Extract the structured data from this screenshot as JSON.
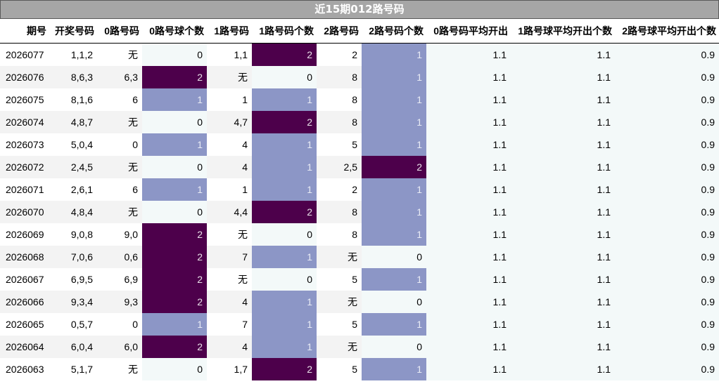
{
  "title": "近15期012路号码",
  "headers": [
    "期号",
    "开奖号码",
    "0路号码",
    "0路号球个数",
    "1路号码",
    "1路号码个数",
    "2路号码",
    "2路号码个数",
    "0路号码平均开出",
    "1路号球平均开出个数",
    "2路号球平均开出个数"
  ],
  "rows": [
    [
      "2026077",
      "1,1,2",
      "无",
      "0",
      "1,1",
      "2",
      "2",
      "1",
      "1.1",
      "1.1",
      "0.9"
    ],
    [
      "2026076",
      "8,6,3",
      "6,3",
      "2",
      "无",
      "0",
      "8",
      "1",
      "1.1",
      "1.1",
      "0.9"
    ],
    [
      "2026075",
      "8,1,6",
      "6",
      "1",
      "1",
      "1",
      "8",
      "1",
      "1.1",
      "1.1",
      "0.9"
    ],
    [
      "2026074",
      "4,8,7",
      "无",
      "0",
      "4,7",
      "2",
      "8",
      "1",
      "1.1",
      "1.1",
      "0.9"
    ],
    [
      "2026073",
      "5,0,4",
      "0",
      "1",
      "4",
      "1",
      "5",
      "1",
      "1.1",
      "1.1",
      "0.9"
    ],
    [
      "2026072",
      "2,4,5",
      "无",
      "0",
      "4",
      "1",
      "2,5",
      "2",
      "1.1",
      "1.1",
      "0.9"
    ],
    [
      "2026071",
      "2,6,1",
      "6",
      "1",
      "1",
      "1",
      "2",
      "1",
      "1.1",
      "1.1",
      "0.9"
    ],
    [
      "2026070",
      "4,8,4",
      "无",
      "0",
      "4,4",
      "2",
      "8",
      "1",
      "1.1",
      "1.1",
      "0.9"
    ],
    [
      "2026069",
      "9,0,8",
      "9,0",
      "2",
      "无",
      "0",
      "8",
      "1",
      "1.1",
      "1.1",
      "0.9"
    ],
    [
      "2026068",
      "7,0,6",
      "0,6",
      "2",
      "7",
      "1",
      "无",
      "0",
      "1.1",
      "1.1",
      "0.9"
    ],
    [
      "2026067",
      "6,9,5",
      "6,9",
      "2",
      "无",
      "0",
      "5",
      "1",
      "1.1",
      "1.1",
      "0.9"
    ],
    [
      "2026066",
      "9,3,4",
      "9,3",
      "2",
      "4",
      "1",
      "无",
      "0",
      "1.1",
      "1.1",
      "0.9"
    ],
    [
      "2026065",
      "0,5,7",
      "0",
      "1",
      "7",
      "1",
      "5",
      "1",
      "1.1",
      "1.1",
      "0.9"
    ],
    [
      "2026064",
      "6,0,4",
      "6,0",
      "2",
      "4",
      "1",
      "无",
      "0",
      "1.1",
      "1.1",
      "0.9"
    ],
    [
      "2026063",
      "5,1,7",
      "无",
      "0",
      "1,7",
      "2",
      "5",
      "1",
      "1.1",
      "1.1",
      "0.9"
    ]
  ],
  "colors": {
    "count_0": "#f3f9f9",
    "count_1": "#8c96c6",
    "count_2": "#4d004b",
    "header_bg": "#a6a6a6"
  }
}
